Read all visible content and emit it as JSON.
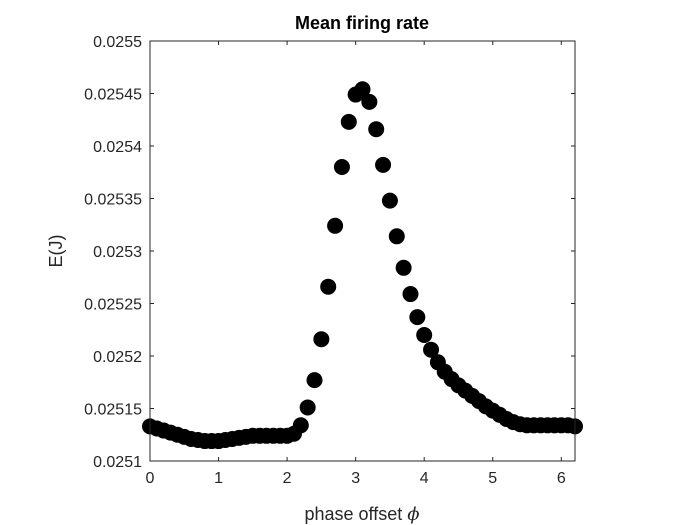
{
  "chart_data": {
    "type": "scatter",
    "title": "Mean firing rate",
    "xlabel": "phase offset",
    "xlabel_symbol": "ϕ",
    "ylabel": "E(J)",
    "xlim": [
      0,
      6.2
    ],
    "ylim": [
      0.0251,
      0.0255
    ],
    "xticks": [
      0,
      1,
      2,
      3,
      4,
      5,
      6
    ],
    "xtick_labels": [
      "0",
      "1",
      "2",
      "3",
      "4",
      "5",
      "6"
    ],
    "yticks": [
      0.0251,
      0.02515,
      0.0252,
      0.02525,
      0.0253,
      0.02535,
      0.0254,
      0.02545,
      0.0255
    ],
    "ytick_labels": [
      "0.0251",
      "0.02515",
      "0.0252",
      "0.02525",
      "0.0253",
      "0.02535",
      "0.0254",
      "0.02545",
      "0.0255"
    ],
    "grid": false,
    "marker_color": "#000000",
    "x": [
      0.0,
      0.1,
      0.2,
      0.3,
      0.4,
      0.5,
      0.6,
      0.7,
      0.8,
      0.9,
      1.0,
      1.1,
      1.2,
      1.3,
      1.4,
      1.5,
      1.6,
      1.7,
      1.8,
      1.9,
      2.0,
      2.1,
      2.2,
      2.3,
      2.4,
      2.5,
      2.6,
      2.7,
      2.8,
      2.9,
      3.0,
      3.1,
      3.2,
      3.3,
      3.4,
      3.5,
      3.6,
      3.7,
      3.8,
      3.9,
      4.0,
      4.1,
      4.2,
      4.3,
      4.4,
      4.5,
      4.6,
      4.7,
      4.8,
      4.9,
      5.0,
      5.1,
      5.2,
      5.3,
      5.4,
      5.5,
      5.6,
      5.7,
      5.8,
      5.9,
      6.0,
      6.1,
      6.2
    ],
    "y": [
      0.025133,
      0.025131,
      0.025129,
      0.025127,
      0.025125,
      0.025123,
      0.025121,
      0.02512,
      0.025119,
      0.025119,
      0.025119,
      0.02512,
      0.025121,
      0.025122,
      0.025123,
      0.025124,
      0.025124,
      0.025124,
      0.025124,
      0.025124,
      0.025124,
      0.025126,
      0.025134,
      0.025151,
      0.025177,
      0.025216,
      0.025266,
      0.025324,
      0.02538,
      0.025423,
      0.025449,
      0.025454,
      0.025442,
      0.025416,
      0.025382,
      0.025348,
      0.025314,
      0.025284,
      0.025259,
      0.025237,
      0.02522,
      0.025206,
      0.025194,
      0.025185,
      0.025178,
      0.025172,
      0.025167,
      0.025162,
      0.025157,
      0.025152,
      0.025148,
      0.025144,
      0.02514,
      0.025137,
      0.025135,
      0.025134,
      0.025134,
      0.025134,
      0.025134,
      0.025134,
      0.025134,
      0.025134,
      0.025133
    ]
  }
}
